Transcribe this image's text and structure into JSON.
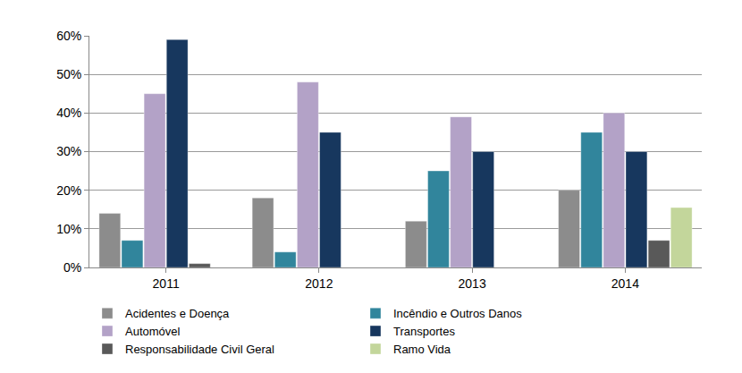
{
  "chart_data": {
    "type": "bar",
    "categories": [
      "2011",
      "2012",
      "2013",
      "2014"
    ],
    "series": [
      {
        "name": "Acidentes e Doença",
        "color": "#8c8c8c",
        "values": [
          14,
          18,
          12,
          20
        ]
      },
      {
        "name": "Incêndio e Outros Danos",
        "color": "#31859c",
        "values": [
          7,
          4,
          25,
          35
        ]
      },
      {
        "name": "Automóvel",
        "color": "#b3a2c7",
        "values": [
          45,
          48,
          39,
          40
        ]
      },
      {
        "name": "Transportes",
        "color": "#17375e",
        "values": [
          59,
          35,
          30,
          30
        ]
      },
      {
        "name": "Responsabilidade Civil Geral",
        "color": "#595959",
        "values": [
          1,
          null,
          null,
          7
        ]
      },
      {
        "name": "Ramo Vida",
        "color": "#c3d69b",
        "values": [
          null,
          null,
          null,
          15.5
        ]
      }
    ],
    "ylim": [
      0,
      60
    ],
    "yticks": [
      {
        "value": 0,
        "label": "0%"
      },
      {
        "value": 10,
        "label": "10%"
      },
      {
        "value": 20,
        "label": "20%"
      },
      {
        "value": 30,
        "label": "30%"
      },
      {
        "value": 40,
        "label": "40%"
      },
      {
        "value": 50,
        "label": "50%"
      },
      {
        "value": 60,
        "label": "60%"
      }
    ],
    "grid": true,
    "legend": "bottom"
  }
}
